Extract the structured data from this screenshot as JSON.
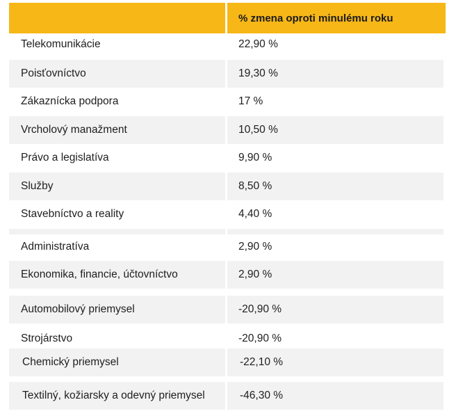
{
  "table": {
    "header": {
      "col1": "",
      "col2": "% zmena oproti minulému roku"
    },
    "rows": [
      {
        "name": "Telekomunikácie",
        "value": "22,90 %",
        "shaded": false
      },
      {
        "name": "Poisťovníctvo",
        "value": "19,30 %",
        "shaded": true
      },
      {
        "name": "Zákaznícka podpora",
        "value": "17 %",
        "shaded": false
      },
      {
        "name": "Vrcholový manažment",
        "value": "10,50 %",
        "shaded": true
      },
      {
        "name": "Právo a legislatíva",
        "value": "9,90 %",
        "shaded": false
      },
      {
        "name": "Služby",
        "value": "8,50 %",
        "shaded": true
      },
      {
        "name": "Stavebníctvo a reality",
        "value": "4,40 %",
        "shaded": false
      },
      {
        "name": "Administratíva",
        "value": "2,90 %",
        "shaded": false
      },
      {
        "name": "Ekonomika, financie, účtovníctvo",
        "value": "2,90 %",
        "shaded": true
      },
      {
        "name": "Automobilový priemysel",
        "value": "-20,90 %",
        "shaded": true
      },
      {
        "name": "Strojárstvo",
        "value": "-20,90 %",
        "shaded": false
      },
      {
        "name": "Chemický priemysel",
        "value": "-22,10 %",
        "shaded": true
      },
      {
        "name": "Textilný, kožiarsky a odevný priemysel",
        "value": "-46,30 %",
        "shaded": true
      }
    ]
  },
  "colors": {
    "header_bg": "#F7B717",
    "row_shade": "#F2F2F2"
  }
}
